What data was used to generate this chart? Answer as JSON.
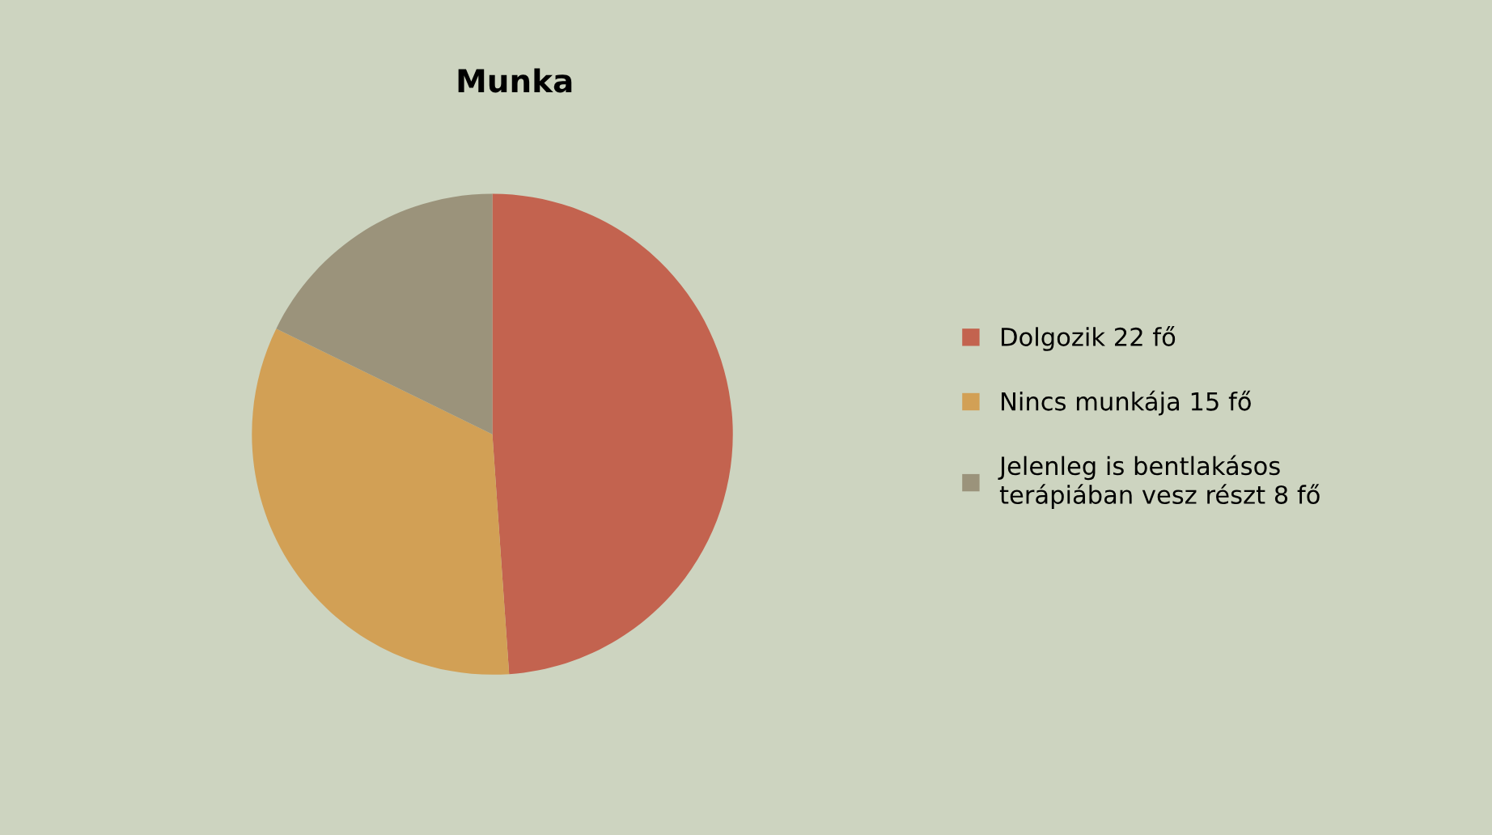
{
  "chart_data": {
    "type": "pie",
    "title": "Munka",
    "categories": [
      "Dolgozik 22 fő",
      "Nincs munkája 15 fő",
      "Jelenleg is bentlakásos\nterápiában vesz részt 8 fő"
    ],
    "values": [
      22,
      15,
      8
    ],
    "colors": [
      "#c3634f",
      "#d2a055",
      "#9b937b"
    ],
    "legend": "right"
  }
}
